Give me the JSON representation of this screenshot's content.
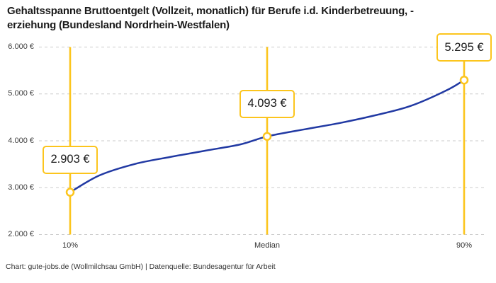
{
  "title_lines": [
    "Gehaltsspanne Bruttoentgelt (Vollzeit, monatlich) für Berufe i.d. Kinderbetreuung, -",
    "erziehung (Bundesland Nordrhein-Westfalen)"
  ],
  "footer": "Chart: gute-jobs.de (Wollmilchsau GmbH) | Datenquelle: Bundesagentur für Arbeit",
  "colors": {
    "accent_yellow": "#FCC51D",
    "curve_blue": "#2139A3",
    "grid_gray": "#CBCBCB",
    "title_text": "#1A1A1A",
    "axis_text": "#3D3D3D",
    "value_text": "#1A1A1A",
    "background": "#FFFFFF"
  },
  "chart_data": {
    "type": "line",
    "title": "Gehaltsspanne Bruttoentgelt (Vollzeit, monatlich) für Berufe i.d. Kinderbetreuung, -erziehung (Bundesland Nordrhein-Westfalen)",
    "xlabel": "",
    "ylabel": "",
    "ylim": [
      2000,
      6000
    ],
    "grid": "dashed-horizontal",
    "legend": "none",
    "x_axis": {
      "ticks": [
        "10%",
        "Median",
        "90%"
      ]
    },
    "y_axis": {
      "ticks": [
        {
          "value": 6000,
          "label": "6.000 €"
        },
        {
          "value": 5000,
          "label": "5.000 €"
        },
        {
          "value": 4000,
          "label": "4.000 €"
        },
        {
          "value": 3000,
          "label": "3.000 €"
        },
        {
          "value": 2000,
          "label": "2.000 €"
        }
      ]
    },
    "points": [
      {
        "x": "10%",
        "value": 2903,
        "label": "2.903 €"
      },
      {
        "x": "Median",
        "value": 4093,
        "label": "4.093 €"
      },
      {
        "x": "90%",
        "value": 5295,
        "label": "5.295 €"
      }
    ],
    "curve_samples": [
      {
        "t": 0,
        "value": 2903
      },
      {
        "t": 0.074,
        "value": 3260
      },
      {
        "t": 0.164,
        "value": 3505
      },
      {
        "t": 0.254,
        "value": 3655
      },
      {
        "t": 0.344,
        "value": 3790
      },
      {
        "t": 0.433,
        "value": 3925
      },
      {
        "t": 0.5,
        "value": 4093
      },
      {
        "t": 0.595,
        "value": 4245
      },
      {
        "t": 0.685,
        "value": 4380
      },
      {
        "t": 0.775,
        "value": 4545
      },
      {
        "t": 0.865,
        "value": 4745
      },
      {
        "t": 0.955,
        "value": 5075
      },
      {
        "t": 1,
        "value": 5295
      }
    ]
  }
}
